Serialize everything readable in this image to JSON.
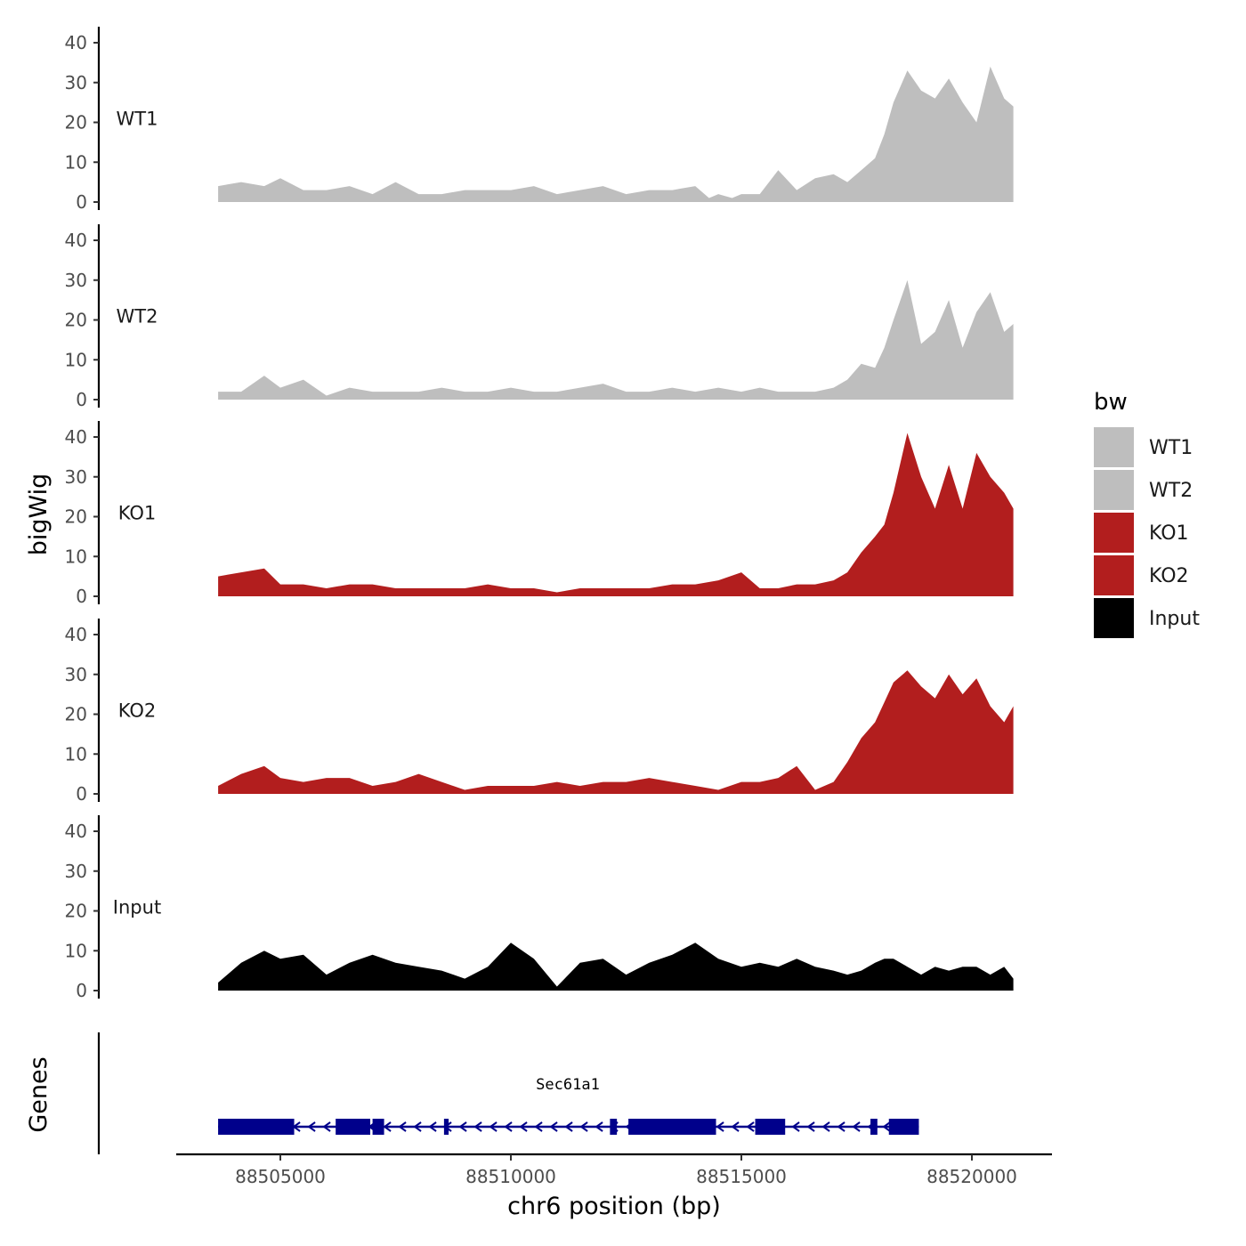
{
  "chart_data": {
    "type": "area",
    "ylabel": "bigWig",
    "xlabel": "chr6 position (bp)",
    "legend_title": "bw",
    "legend_position": "right",
    "xlim": [
      88503000,
      88522200
    ],
    "x_ticks": [
      88505000,
      88510000,
      88515000,
      88520000
    ],
    "x_tick_labels": [
      "88505000",
      "88510000",
      "88515000",
      "88520000"
    ],
    "ylim": [
      0,
      45
    ],
    "y_ticks": [
      0,
      10,
      20,
      30,
      40
    ],
    "y_tick_labels": [
      "0",
      "10",
      "20",
      "30",
      "40"
    ],
    "grid": false,
    "track_range": [
      88503650,
      88520900
    ],
    "tracks": [
      {
        "name": "WT1",
        "color": "#bebebe",
        "x": [
          88503650,
          88504150,
          88504650,
          88505000,
          88505500,
          88506000,
          88506500,
          88507000,
          88507500,
          88508000,
          88508500,
          88509000,
          88509500,
          88510000,
          88510500,
          88511000,
          88511500,
          88512000,
          88512500,
          88513000,
          88513500,
          88514000,
          88514300,
          88514500,
          88514800,
          88515000,
          88515400,
          88515800,
          88516200,
          88516600,
          88517000,
          88517300,
          88517600,
          88517900,
          88518100,
          88518300,
          88518600,
          88518900,
          88519200,
          88519500,
          88519800,
          88520100,
          88520400,
          88520700,
          88520900
        ],
        "values": [
          4,
          5,
          4,
          6,
          3,
          3,
          4,
          2,
          5,
          2,
          2,
          3,
          3,
          3,
          4,
          2,
          3,
          4,
          2,
          3,
          3,
          4,
          1,
          2,
          1,
          2,
          2,
          8,
          3,
          6,
          7,
          5,
          8,
          11,
          17,
          25,
          33,
          28,
          26,
          31,
          25,
          20,
          34,
          26,
          24
        ]
      },
      {
        "name": "WT2",
        "color": "#bebebe",
        "x": [
          88503650,
          88504150,
          88504650,
          88505000,
          88505500,
          88506000,
          88506500,
          88507000,
          88507500,
          88508000,
          88508500,
          88509000,
          88509500,
          88510000,
          88510500,
          88511000,
          88511500,
          88512000,
          88512500,
          88513000,
          88513500,
          88514000,
          88514500,
          88515000,
          88515400,
          88515800,
          88516200,
          88516600,
          88517000,
          88517300,
          88517600,
          88517900,
          88518100,
          88518300,
          88518600,
          88518900,
          88519200,
          88519500,
          88519800,
          88520100,
          88520400,
          88520700,
          88520900
        ],
        "values": [
          2,
          2,
          6,
          3,
          5,
          1,
          3,
          2,
          2,
          2,
          3,
          2,
          2,
          3,
          2,
          2,
          3,
          4,
          2,
          2,
          3,
          2,
          3,
          2,
          3,
          2,
          2,
          2,
          3,
          5,
          9,
          8,
          13,
          20,
          30,
          14,
          17,
          25,
          13,
          22,
          27,
          17,
          19
        ]
      },
      {
        "name": "KO1",
        "color": "#b21e1e",
        "x": [
          88503650,
          88504150,
          88504650,
          88505000,
          88505500,
          88506000,
          88506500,
          88507000,
          88507500,
          88508000,
          88508500,
          88509000,
          88509500,
          88510000,
          88510500,
          88511000,
          88511500,
          88512000,
          88512500,
          88513000,
          88513500,
          88514000,
          88514500,
          88515000,
          88515400,
          88515800,
          88516200,
          88516600,
          88517000,
          88517300,
          88517600,
          88517900,
          88518100,
          88518300,
          88518600,
          88518900,
          88519200,
          88519500,
          88519800,
          88520100,
          88520400,
          88520700,
          88520900
        ],
        "values": [
          5,
          6,
          7,
          3,
          3,
          2,
          3,
          3,
          2,
          2,
          2,
          2,
          3,
          2,
          2,
          1,
          2,
          2,
          2,
          2,
          3,
          3,
          4,
          6,
          2,
          2,
          3,
          3,
          4,
          6,
          11,
          15,
          18,
          26,
          41,
          30,
          22,
          33,
          22,
          36,
          30,
          26,
          22
        ]
      },
      {
        "name": "KO2",
        "color": "#b21e1e",
        "x": [
          88503650,
          88504150,
          88504650,
          88505000,
          88505500,
          88506000,
          88506500,
          88507000,
          88507500,
          88508000,
          88508500,
          88509000,
          88509500,
          88510000,
          88510500,
          88511000,
          88511500,
          88512000,
          88512500,
          88513000,
          88513500,
          88514000,
          88514500,
          88515000,
          88515400,
          88515800,
          88516200,
          88516600,
          88517000,
          88517300,
          88517600,
          88517900,
          88518100,
          88518300,
          88518600,
          88518900,
          88519200,
          88519500,
          88519800,
          88520100,
          88520400,
          88520700,
          88520900
        ],
        "values": [
          2,
          5,
          7,
          4,
          3,
          4,
          4,
          2,
          3,
          5,
          3,
          1,
          2,
          2,
          2,
          3,
          2,
          3,
          3,
          4,
          3,
          2,
          1,
          3,
          3,
          4,
          7,
          1,
          3,
          8,
          14,
          18,
          23,
          28,
          31,
          27,
          24,
          30,
          25,
          29,
          22,
          18,
          22
        ]
      },
      {
        "name": "Input",
        "color": "#000000",
        "x": [
          88503650,
          88504150,
          88504650,
          88505000,
          88505500,
          88506000,
          88506500,
          88507000,
          88507500,
          88508000,
          88508500,
          88509000,
          88509500,
          88510000,
          88510500,
          88511000,
          88511500,
          88512000,
          88512500,
          88513000,
          88513500,
          88514000,
          88514500,
          88515000,
          88515400,
          88515800,
          88516200,
          88516600,
          88517000,
          88517300,
          88517600,
          88517900,
          88518100,
          88518300,
          88518600,
          88518900,
          88519200,
          88519500,
          88519800,
          88520100,
          88520400,
          88520700,
          88520900
        ],
        "values": [
          2,
          7,
          10,
          8,
          9,
          4,
          7,
          9,
          7,
          6,
          5,
          3,
          6,
          12,
          8,
          1,
          7,
          8,
          4,
          7,
          9,
          12,
          8,
          6,
          7,
          6,
          8,
          6,
          5,
          4,
          5,
          7,
          8,
          8,
          6,
          4,
          6,
          5,
          6,
          6,
          4,
          6,
          3
        ]
      }
    ],
    "genes": [
      {
        "name": "Sec61a1",
        "strand": "-",
        "start": 88503650,
        "end": 88518850,
        "exons": [
          [
            88503650,
            88505300
          ],
          [
            88506200,
            88506950
          ],
          [
            88507000,
            88507250
          ],
          [
            88508550,
            88508650
          ],
          [
            88512150,
            88512300
          ],
          [
            88512550,
            88514450
          ],
          [
            88515300,
            88515950
          ],
          [
            88517800,
            88517950
          ],
          [
            88518200,
            88518850
          ]
        ]
      }
    ]
  }
}
